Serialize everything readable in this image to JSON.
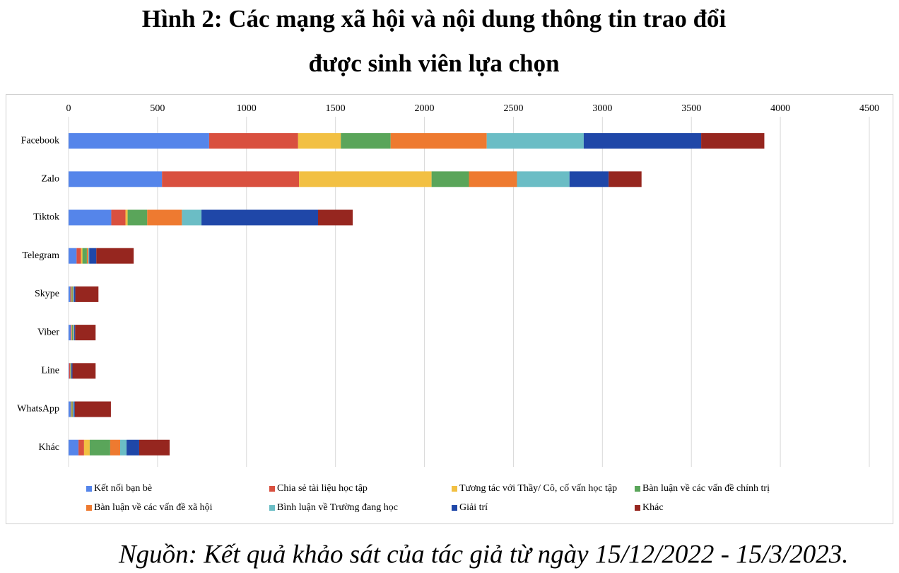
{
  "chart_data": {
    "type": "bar",
    "orientation": "horizontal",
    "stacked": true,
    "title": "Hình 2: Các mạng xã hội và nội dung thông tin trao đổi",
    "subtitle": "được sinh viên lựa chọn",
    "source": "Nguồn: Kết quả khảo sát của tác giả từ ngày 15/12/2022 - 15/3/2023.",
    "categories": [
      "Facebook",
      "Zalo",
      "Tiktok",
      "Telegram",
      "Skype",
      "Viber",
      "Line",
      "WhatsApp",
      "Khác"
    ],
    "xlim": [
      0,
      4500
    ],
    "xticks": [
      0,
      500,
      1000,
      1500,
      2000,
      2500,
      3000,
      3500,
      4000,
      4500
    ],
    "grid": true,
    "legend_position": "bottom",
    "series": [
      {
        "name": "Kết nối bạn bè",
        "color": "#5585ea",
        "values": [
          790,
          525,
          240,
          45,
          10,
          12,
          3,
          12,
          56
        ]
      },
      {
        "name": "Chia sẻ tài liệu học tập",
        "color": "#d9503f",
        "values": [
          500,
          770,
          80,
          25,
          5,
          5,
          6,
          3,
          31
        ]
      },
      {
        "name": "Tương tác với Thầy/ Cô, cố vấn học tập",
        "color": "#f2c043",
        "values": [
          240,
          745,
          12,
          8,
          2,
          2,
          1,
          2,
          32
        ]
      },
      {
        "name": "Bàn luận về các vấn đề chính trị",
        "color": "#5aa55a",
        "values": [
          280,
          210,
          110,
          25,
          5,
          5,
          2,
          5,
          115
        ]
      },
      {
        "name": "Bàn luận về các vấn đề xã hội",
        "color": "#ee7a30",
        "values": [
          540,
          270,
          195,
          8,
          3,
          3,
          2,
          2,
          56
        ]
      },
      {
        "name": "Bình luận về Trường đang học",
        "color": "#6bbdc5",
        "values": [
          545,
          295,
          110,
          5,
          5,
          5,
          2,
          5,
          36
        ]
      },
      {
        "name": "Giải trí",
        "color": "#1f47a8",
        "values": [
          660,
          220,
          655,
          40,
          8,
          5,
          6,
          6,
          71
        ]
      },
      {
        "name": "Khác",
        "color": "#96261f",
        "values": [
          355,
          185,
          195,
          210,
          130,
          115,
          130,
          203,
          171
        ]
      }
    ]
  }
}
